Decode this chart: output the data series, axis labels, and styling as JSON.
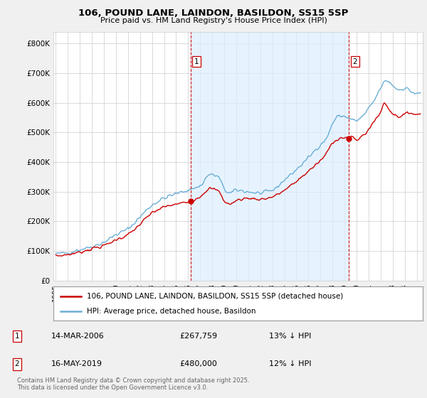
{
  "title": "106, POUND LANE, LAINDON, BASILDON, SS15 5SP",
  "subtitle": "Price paid vs. HM Land Registry's House Price Index (HPI)",
  "ylabel_ticks": [
    "£0",
    "£100K",
    "£200K",
    "£300K",
    "£400K",
    "£500K",
    "£600K",
    "£700K",
    "£800K"
  ],
  "ytick_values": [
    0,
    100000,
    200000,
    300000,
    400000,
    500000,
    600000,
    700000,
    800000
  ],
  "ylim": [
    0,
    840000
  ],
  "xlim_start": 1994.8,
  "xlim_end": 2025.5,
  "hpi_color": "#6baed6",
  "hpi_fill_color": "#dceeff",
  "price_color": "#cc0000",
  "marker1_x": 2006.2,
  "marker1_y": 267759,
  "marker2_x": 2019.37,
  "marker2_y": 480000,
  "marker1_label": "14-MAR-2006",
  "marker1_price": "£267,759",
  "marker1_pct": "13% ↓ HPI",
  "marker2_label": "16-MAY-2019",
  "marker2_price": "£480,000",
  "marker2_pct": "12% ↓ HPI",
  "legend_line1": "106, POUND LANE, LAINDON, BASILDON, SS15 5SP (detached house)",
  "legend_line2": "HPI: Average price, detached house, Basildon",
  "footnote": "Contains HM Land Registry data © Crown copyright and database right 2025.\nThis data is licensed under the Open Government Licence v3.0.",
  "background_color": "#f0f0f0",
  "plot_bg_color": "#ffffff",
  "grid_color": "#cccccc"
}
